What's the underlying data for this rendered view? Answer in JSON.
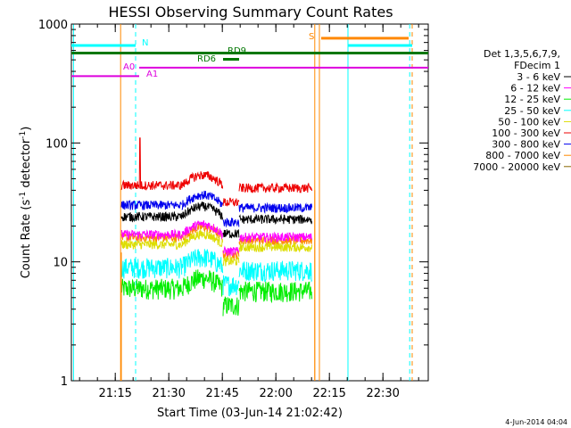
{
  "chart_data": {
    "type": "line",
    "title": "HESSI Observing Summary Count Rates",
    "xlabel": "Start Time (03-Jun-14 21:02:42)",
    "ylabel_main": "Count Rate (s",
    "ylabel_sup1": "-1",
    "ylabel_mid": " detector",
    "ylabel_sup2": "-1",
    "ylabel_end": ")",
    "yscale": "log",
    "ylim": [
      1,
      1000
    ],
    "xlim_minutes": [
      0,
      100
    ],
    "x_ticks": [
      {
        "label": "21:15",
        "min": 12.3
      },
      {
        "label": "21:30",
        "min": 27.3
      },
      {
        "label": "21:45",
        "min": 42.3
      },
      {
        "label": "22:00",
        "min": 57.3
      },
      {
        "label": "22:15",
        "min": 72.3
      },
      {
        "label": "22:30",
        "min": 87.3
      }
    ],
    "y_ticks": [
      {
        "label": "1",
        "value": 1
      },
      {
        "label": "10",
        "value": 10
      },
      {
        "label": "100",
        "value": 100
      },
      {
        "label": "1000",
        "value": 1000
      }
    ],
    "legend": {
      "placement": "right",
      "header": [
        "Det 1,3,5,6,7,9,",
        "FDecim 1"
      ]
    },
    "series": [
      {
        "name": "3 - 6 keV",
        "color": "#000000",
        "level": 24
      },
      {
        "name": "6 - 12 keV",
        "color": "#ff00ff",
        "level": 17
      },
      {
        "name": "12 - 25 keV",
        "color": "#00ee00",
        "level": 6
      },
      {
        "name": "25 - 50 keV",
        "color": "#00ffff",
        "level": 9
      },
      {
        "name": "50 - 100 keV",
        "color": "#dddd00",
        "level": 14
      },
      {
        "name": "100 - 300 keV",
        "color": "#ee0000",
        "level": 44
      },
      {
        "name": "300 - 800 keV",
        "color": "#0000ee",
        "level": 30
      },
      {
        "name": "800 - 7000 keV",
        "color": "#ff8800",
        "level": 16
      },
      {
        "name": "7000 - 20000 keV",
        "color": "#886600",
        "level": 1
      }
    ],
    "data_intervals_minutes": [
      [
        14,
        31
      ],
      [
        31,
        42.5
      ],
      [
        42.5,
        47
      ],
      [
        47,
        67.5
      ]
    ],
    "flags": [
      {
        "label": "N",
        "color": "#00ffff"
      },
      {
        "label": "S",
        "color": "#ff8800"
      },
      {
        "label": "RD9",
        "color": "#007700"
      },
      {
        "label": "RD6",
        "color": "#007700"
      },
      {
        "label": "A0",
        "color": "#dd00dd"
      },
      {
        "label": "A1",
        "color": "#dd00dd"
      }
    ],
    "grid": false
  },
  "footer_stamp": "4-Jun-2014 04:04"
}
